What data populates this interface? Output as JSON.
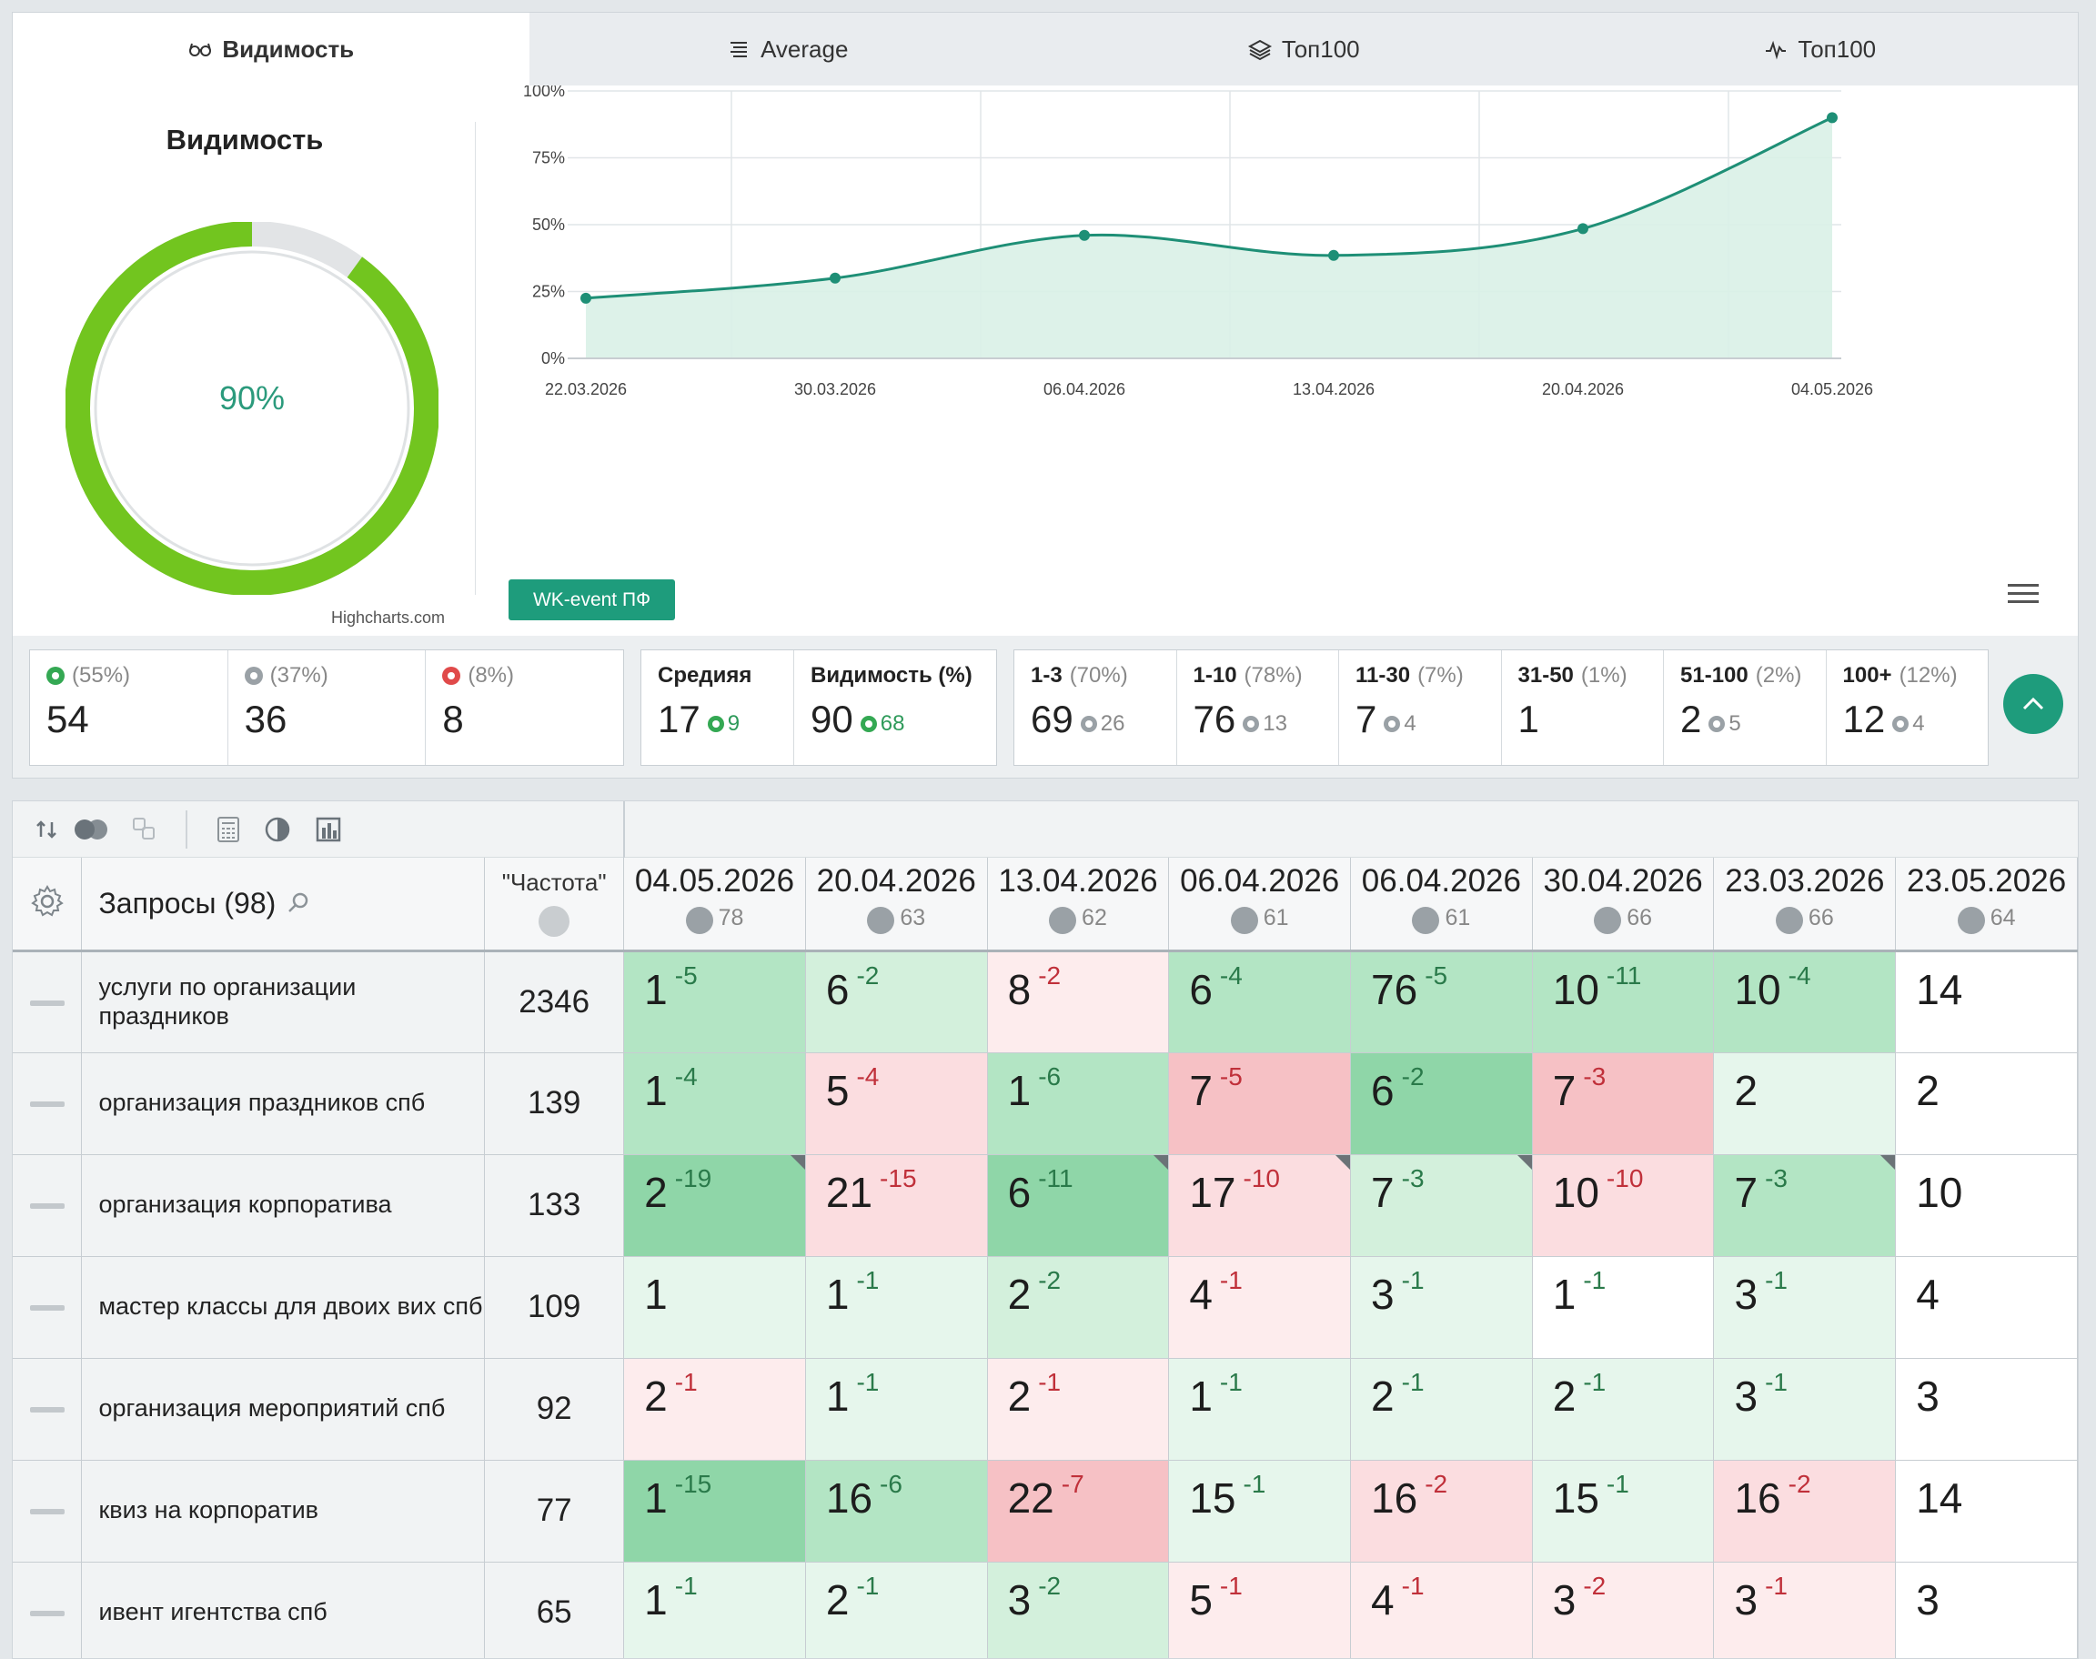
{
  "tabs": [
    {
      "label": "Видимость",
      "icon": "glasses-icon",
      "active": true
    },
    {
      "label": "Average",
      "icon": "list-icon",
      "active": false
    },
    {
      "label": "Топ100",
      "icon": "layers-icon",
      "active": false
    },
    {
      "label": "Топ100",
      "icon": "activity-icon",
      "active": false
    }
  ],
  "visibility": {
    "title": "Видимость",
    "percent_label": "90%",
    "percent": 0.9,
    "credits": "Highcharts.com",
    "event_button": "WK-event ПФ"
  },
  "chart_data": {
    "type": "area",
    "x": [
      "22.03.2026",
      "30.03.2026",
      "06.04.2026",
      "13.04.2026",
      "20.04.2026",
      "04.05.2026"
    ],
    "y": [
      22.5,
      30,
      46,
      38.5,
      48.5,
      90
    ],
    "y_ticks": [
      "100%",
      "75%",
      "50%",
      "25%",
      "0%"
    ],
    "ylim": [
      0,
      100
    ],
    "grid": true,
    "line_color": "#1e8f76",
    "fill_color": "#d9f1e7"
  },
  "stats": {
    "summary": [
      {
        "pct": "(55%)",
        "value": "54",
        "status": "green"
      },
      {
        "pct": "(37%)",
        "value": "36",
        "status": "grey"
      },
      {
        "pct": "(8%)",
        "value": "8",
        "status": "red"
      }
    ],
    "averages": [
      {
        "label": "Средияя",
        "value": "17",
        "sub": "9"
      },
      {
        "label": "Видимость (%)",
        "value": "90",
        "sub": "68"
      }
    ],
    "ranges": [
      {
        "label": "1-3",
        "pct": "(70%)",
        "value": "69",
        "sub": "26"
      },
      {
        "label": "1-10",
        "pct": "(78%)",
        "value": "76",
        "sub": "13"
      },
      {
        "label": "11-30",
        "pct": "(7%)",
        "value": "7",
        "sub": "4"
      },
      {
        "label": "31-50",
        "pct": "(1%)",
        "value": "1",
        "sub": ""
      },
      {
        "label": "51-100",
        "pct": "(2%)",
        "value": "2",
        "sub": "5"
      },
      {
        "label": "100+",
        "pct": "(12%)",
        "value": "12",
        "sub": "4"
      }
    ]
  },
  "table": {
    "query_header": "Запросы (98)",
    "freq_header": "\"Частота\"",
    "dates": [
      {
        "date": "04.05.2026",
        "count": "78"
      },
      {
        "date": "20.04.2026",
        "count": "63"
      },
      {
        "date": "13.04.2026",
        "count": "62"
      },
      {
        "date": "06.04.2026",
        "count": "61"
      },
      {
        "date": "06.04.2026",
        "count": "61"
      },
      {
        "date": "30.04.2026",
        "count": "66"
      },
      {
        "date": "23.03.2026",
        "count": "66"
      },
      {
        "date": "23.05.2026",
        "count": "64"
      }
    ],
    "rows": [
      {
        "query": "услуги по организации праздников",
        "freq": "2346",
        "cells": [
          {
            "v": "1",
            "d": "-5",
            "bg": "g2",
            "dc": "gd"
          },
          {
            "v": "6",
            "d": "-2",
            "bg": "g3",
            "dc": "gd"
          },
          {
            "v": "8",
            "d": "-2",
            "bg": "r3",
            "dc": "rd"
          },
          {
            "v": "6",
            "d": "-4",
            "bg": "g2",
            "dc": "gd"
          },
          {
            "v": "76",
            "d": "-5",
            "bg": "g2",
            "dc": "gd"
          },
          {
            "v": "10",
            "d": "-11",
            "bg": "g2",
            "dc": "gd"
          },
          {
            "v": "10",
            "d": "-4",
            "bg": "g2",
            "dc": "gd"
          },
          {
            "v": "14",
            "d": "",
            "bg": "w",
            "dc": ""
          }
        ]
      },
      {
        "query": "организация праздников спб",
        "freq": "139",
        "cells": [
          {
            "v": "1",
            "d": "-4",
            "bg": "g2",
            "dc": "gd"
          },
          {
            "v": "5",
            "d": "-4",
            "bg": "r2",
            "dc": "rd"
          },
          {
            "v": "1",
            "d": "-6",
            "bg": "g2",
            "dc": "gd"
          },
          {
            "v": "7",
            "d": "-5",
            "bg": "r1",
            "dc": "rd"
          },
          {
            "v": "6",
            "d": "-2",
            "bg": "g1",
            "dc": "gd"
          },
          {
            "v": "7",
            "d": "-3",
            "bg": "r1",
            "dc": "rd"
          },
          {
            "v": "2",
            "d": "",
            "bg": "g4",
            "dc": ""
          },
          {
            "v": "2",
            "d": "",
            "bg": "w",
            "dc": ""
          }
        ]
      },
      {
        "query": "организация корпоратива",
        "freq": "133",
        "cells": [
          {
            "v": "2",
            "d": "-19",
            "bg": "g1",
            "dc": "gd",
            "corner": true
          },
          {
            "v": "21",
            "d": "-15",
            "bg": "r2",
            "dc": "rd"
          },
          {
            "v": "6",
            "d": "-11",
            "bg": "g1",
            "dc": "gd",
            "corner": true
          },
          {
            "v": "17",
            "d": "-10",
            "bg": "r2",
            "dc": "rd",
            "corner": true
          },
          {
            "v": "7",
            "d": "-3",
            "bg": "g3",
            "dc": "gd",
            "corner": true
          },
          {
            "v": "10",
            "d": "-10",
            "bg": "r2",
            "dc": "rd"
          },
          {
            "v": "7",
            "d": "-3",
            "bg": "g2",
            "dc": "gd",
            "corner": true
          },
          {
            "v": "10",
            "d": "",
            "bg": "w",
            "dc": ""
          }
        ]
      },
      {
        "query": "мастер классы для двоих вих спб",
        "freq": "109",
        "cells": [
          {
            "v": "1",
            "d": "",
            "bg": "g4",
            "dc": ""
          },
          {
            "v": "1",
            "d": "-1",
            "bg": "g4",
            "dc": "gd"
          },
          {
            "v": "2",
            "d": "-2",
            "bg": "g3",
            "dc": "gd"
          },
          {
            "v": "4",
            "d": "-1",
            "bg": "r3",
            "dc": "rd"
          },
          {
            "v": "3",
            "d": "-1",
            "bg": "g4",
            "dc": "gd"
          },
          {
            "v": "1",
            "d": "-1",
            "bg": "w",
            "dc": "gd"
          },
          {
            "v": "3",
            "d": "-1",
            "bg": "g4",
            "dc": "gd"
          },
          {
            "v": "4",
            "d": "",
            "bg": "w",
            "dc": ""
          }
        ]
      },
      {
        "query": "организация мероприятий спб",
        "freq": "92",
        "cells": [
          {
            "v": "2",
            "d": "-1",
            "bg": "r3",
            "dc": "rd"
          },
          {
            "v": "1",
            "d": "-1",
            "bg": "g4",
            "dc": "gd"
          },
          {
            "v": "2",
            "d": "-1",
            "bg": "r3",
            "dc": "rd"
          },
          {
            "v": "1",
            "d": "-1",
            "bg": "g4",
            "dc": "gd"
          },
          {
            "v": "2",
            "d": "-1",
            "bg": "g4",
            "dc": "gd"
          },
          {
            "v": "2",
            "d": "-1",
            "bg": "g4",
            "dc": "gd"
          },
          {
            "v": "3",
            "d": "-1",
            "bg": "g4",
            "dc": "gd"
          },
          {
            "v": "3",
            "d": "",
            "bg": "w",
            "dc": ""
          }
        ]
      },
      {
        "query": "квиз на корпоратив",
        "freq": "77",
        "cells": [
          {
            "v": "1",
            "d": "-15",
            "bg": "g1",
            "dc": "gd"
          },
          {
            "v": "16",
            "d": "-6",
            "bg": "g2",
            "dc": "gd"
          },
          {
            "v": "22",
            "d": "-7",
            "bg": "r1",
            "dc": "rd"
          },
          {
            "v": "15",
            "d": "-1",
            "bg": "g4",
            "dc": "gd"
          },
          {
            "v": "16",
            "d": "-2",
            "bg": "r2",
            "dc": "rd"
          },
          {
            "v": "15",
            "d": "-1",
            "bg": "g4",
            "dc": "gd"
          },
          {
            "v": "16",
            "d": "-2",
            "bg": "r2",
            "dc": "rd"
          },
          {
            "v": "14",
            "d": "",
            "bg": "w",
            "dc": ""
          }
        ]
      },
      {
        "query": "ивент игентства спб",
        "freq": "65",
        "cells": [
          {
            "v": "1",
            "d": "-1",
            "bg": "g4",
            "dc": "gd"
          },
          {
            "v": "2",
            "d": "-1",
            "bg": "g4",
            "dc": "gd"
          },
          {
            "v": "3",
            "d": "-2",
            "bg": "g3",
            "dc": "gd"
          },
          {
            "v": "5",
            "d": "-1",
            "bg": "r3",
            "dc": "rd"
          },
          {
            "v": "4",
            "d": "-1",
            "bg": "r3",
            "dc": "rd"
          },
          {
            "v": "3",
            "d": "-2",
            "bg": "r3",
            "dc": "rd"
          },
          {
            "v": "3",
            "d": "-1",
            "bg": "r3",
            "dc": "rd"
          },
          {
            "v": "3",
            "d": "",
            "bg": "w",
            "dc": ""
          }
        ]
      }
    ]
  }
}
